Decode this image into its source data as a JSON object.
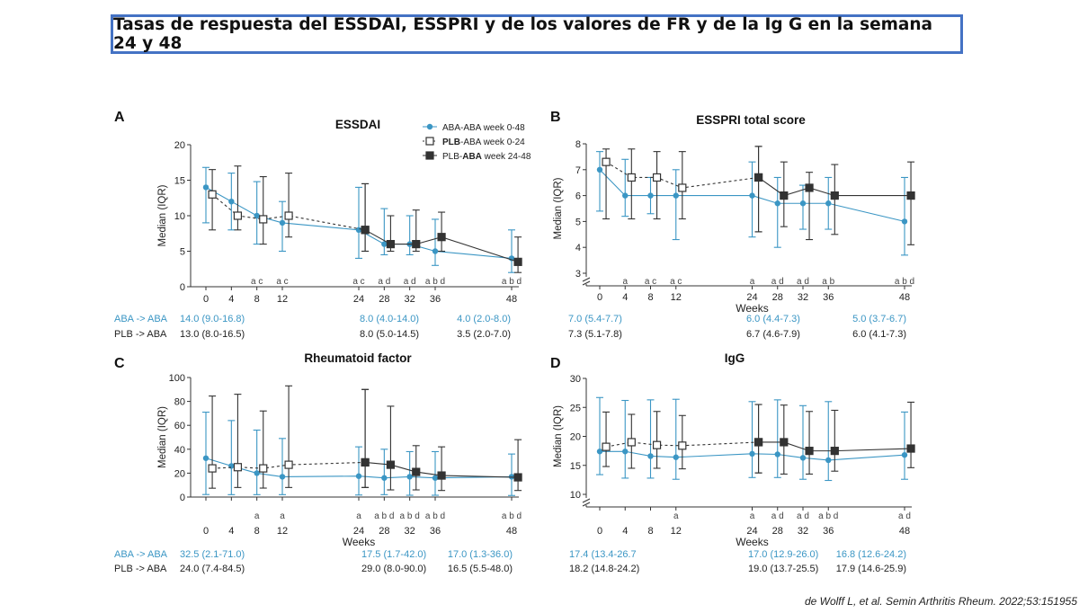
{
  "page_title": "Tasas de respuesta del ESSDAI, ESSPRI y de los valores de FR y de la Ig G en la semana 24 y 48",
  "citation": "de Wolff L, et al. Semin Arthritis Rheum. 2022;53:151955",
  "colors": {
    "aba": "#3b96c4",
    "plb": "#333333",
    "frame": "#4472c4"
  },
  "legend": [
    {
      "label": "ABA-ABA week 0-48",
      "marker": "filled-circle",
      "color": "#3b96c4"
    },
    {
      "label_bold": "PLB",
      "label_rest": "-ABA week 0-24",
      "marker": "open-square",
      "color": "#333333"
    },
    {
      "label_pre": "PLB-",
      "label_bold": "ABA",
      "label_rest": " week 24-48",
      "marker": "filled-square",
      "color": "#333333"
    }
  ],
  "chart_data": [
    {
      "panel": "A",
      "title": "ESSDAI",
      "type": "line",
      "ylabel": "Median (IQR)",
      "xlabel": "",
      "ylim": [
        0,
        20
      ],
      "yticks": [
        0,
        5,
        10,
        15,
        20
      ],
      "xticks": [
        0,
        4,
        8,
        12,
        24,
        28,
        32,
        36,
        48
      ],
      "letters": [
        {
          "x": 8,
          "text": "a c"
        },
        {
          "x": 12,
          "text": "a c"
        },
        {
          "x": 24,
          "text": "a c"
        },
        {
          "x": 28,
          "text": "a d"
        },
        {
          "x": 32,
          "text": "a d"
        },
        {
          "x": 36,
          "text": "a b d"
        },
        {
          "x": 48,
          "text": "a b d"
        }
      ],
      "series": [
        {
          "name": "ABA-ABA week 0-48",
          "x": [
            0,
            4,
            8,
            12,
            24,
            28,
            32,
            36,
            48
          ],
          "y": [
            14.0,
            12.0,
            10.0,
            9.0,
            8.0,
            6.0,
            6.0,
            5.0,
            4.0
          ],
          "lo": [
            9.0,
            8.0,
            6.0,
            5.0,
            4.0,
            4.5,
            4.5,
            3.0,
            2.0
          ],
          "hi": [
            16.8,
            16.0,
            14.8,
            12.0,
            14.0,
            11.0,
            10.0,
            9.5,
            8.0
          ]
        },
        {
          "name": "PLB-ABA week 0-24",
          "x": [
            1,
            5,
            9,
            13,
            25
          ],
          "y": [
            13.0,
            10.0,
            9.5,
            10.0,
            8.0
          ],
          "lo": [
            8.0,
            8.0,
            6.0,
            7.0,
            5.0
          ],
          "hi": [
            16.5,
            17.0,
            15.5,
            16.0,
            14.5
          ]
        },
        {
          "name": "PLB-ABA week 24-48",
          "x": [
            25,
            29,
            33,
            37,
            49
          ],
          "y": [
            8.0,
            6.0,
            6.0,
            7.0,
            3.5
          ],
          "lo": [
            5.0,
            5.0,
            5.0,
            5.0,
            2.0
          ],
          "hi": [
            14.5,
            10.0,
            10.8,
            10.5,
            7.0
          ]
        }
      ],
      "summary": {
        "aba_label": "ABA -> ABA",
        "plb_label": "PLB -> ABA",
        "aba": [
          {
            "x": 0,
            "text": "14.0 (9.0-16.8)"
          },
          {
            "x": 24,
            "text": "8.0 (4.0-14.0)"
          },
          {
            "x": 48,
            "text": "4.0 (2.0-8.0)"
          }
        ],
        "plb": [
          {
            "x": 0,
            "text": "13.0 (8.0-16.5)"
          },
          {
            "x": 24,
            "text": "8.0 (5.0-14.5)"
          },
          {
            "x": 48,
            "text": "3.5 (2.0-7.0)"
          }
        ]
      }
    },
    {
      "panel": "B",
      "title": "ESSPRI total score",
      "type": "line",
      "ylabel": "Median (IQR)",
      "xlabel": "Weeks",
      "ylim": [
        3,
        8
      ],
      "yticks": [
        3,
        4,
        5,
        6,
        7,
        8
      ],
      "xticks": [
        0,
        4,
        8,
        12,
        24,
        28,
        32,
        36,
        48
      ],
      "letters": [
        {
          "x": 4,
          "text": "a"
        },
        {
          "x": 8,
          "text": "a c"
        },
        {
          "x": 12,
          "text": "a c"
        },
        {
          "x": 24,
          "text": "a"
        },
        {
          "x": 28,
          "text": "a d"
        },
        {
          "x": 32,
          "text": "a d"
        },
        {
          "x": 36,
          "text": "a b"
        },
        {
          "x": 48,
          "text": "a b d"
        }
      ],
      "series": [
        {
          "name": "ABA-ABA week 0-48",
          "x": [
            0,
            4,
            8,
            12,
            24,
            28,
            32,
            36,
            48
          ],
          "y": [
            7.0,
            6.0,
            6.0,
            6.0,
            6.0,
            5.7,
            5.7,
            5.7,
            5.0
          ],
          "lo": [
            5.4,
            5.2,
            5.3,
            4.3,
            4.4,
            4.0,
            4.7,
            4.7,
            3.7
          ],
          "hi": [
            7.7,
            7.4,
            6.7,
            7.0,
            7.3,
            6.7,
            6.4,
            6.7,
            6.7
          ]
        },
        {
          "name": "PLB-ABA week 0-24",
          "x": [
            1,
            5,
            9,
            13,
            25
          ],
          "y": [
            7.3,
            6.7,
            6.7,
            6.3,
            6.7
          ],
          "lo": [
            5.1,
            5.1,
            5.1,
            5.1,
            4.6
          ],
          "hi": [
            7.8,
            7.8,
            7.7,
            7.7,
            7.9
          ]
        },
        {
          "name": "PLB-ABA week 24-48",
          "x": [
            25,
            29,
            33,
            37,
            49
          ],
          "y": [
            6.7,
            6.0,
            6.3,
            6.0,
            6.0
          ],
          "lo": [
            4.6,
            4.8,
            4.3,
            4.5,
            4.1
          ],
          "hi": [
            7.9,
            7.3,
            6.9,
            7.2,
            7.3
          ]
        }
      ],
      "summary": {
        "aba": [
          {
            "x": 0,
            "text": "7.0 (5.4-7.7)"
          },
          {
            "x": 24,
            "text": "6.0 (4.4-7.3)"
          },
          {
            "x": 48,
            "text": "5.0 (3.7-6.7)"
          }
        ],
        "plb": [
          {
            "x": 0,
            "text": "7.3 (5.1-7.8)"
          },
          {
            "x": 24,
            "text": "6.7 (4.6-7.9)"
          },
          {
            "x": 48,
            "text": "6.0 (4.1-7.3)"
          }
        ]
      }
    },
    {
      "panel": "C",
      "title": "Rheumatoid factor",
      "type": "line",
      "ylabel": "Median (IQR)",
      "xlabel": "Weeks",
      "ylim": [
        0,
        100
      ],
      "yticks": [
        0,
        20,
        40,
        60,
        80,
        100
      ],
      "xticks": [
        0,
        4,
        8,
        12,
        24,
        28,
        32,
        36,
        48
      ],
      "letters": [
        {
          "x": 8,
          "text": "a"
        },
        {
          "x": 12,
          "text": "a"
        },
        {
          "x": 24,
          "text": "a"
        },
        {
          "x": 28,
          "text": "a b d"
        },
        {
          "x": 32,
          "text": "a b d"
        },
        {
          "x": 36,
          "text": "a b d"
        },
        {
          "x": 48,
          "text": "a b d"
        }
      ],
      "series": [
        {
          "name": "ABA-ABA week 0-48",
          "x": [
            0,
            4,
            8,
            12,
            24,
            28,
            32,
            36,
            48
          ],
          "y": [
            32.5,
            26.0,
            20.0,
            17.0,
            17.5,
            16.0,
            17.0,
            16.0,
            17.0
          ],
          "lo": [
            2.1,
            2.0,
            2.0,
            2.0,
            1.7,
            2.0,
            1.5,
            1.5,
            1.3
          ],
          "hi": [
            71.0,
            64.0,
            56.0,
            49.0,
            42.0,
            40.0,
            38.0,
            38.0,
            36.0
          ]
        },
        {
          "name": "PLB-ABA week 0-24",
          "x": [
            1,
            5,
            9,
            13,
            25
          ],
          "y": [
            24.0,
            25.0,
            24.0,
            27.0,
            29.0
          ],
          "lo": [
            7.4,
            8.0,
            7.5,
            8.0,
            8.0
          ],
          "hi": [
            84.5,
            86.0,
            72.0,
            93.0,
            90.0
          ]
        },
        {
          "name": "PLB-ABA week 24-48",
          "x": [
            25,
            29,
            33,
            37,
            49
          ],
          "y": [
            29.0,
            27.0,
            21.0,
            18.0,
            16.5
          ],
          "lo": [
            8.0,
            6.0,
            6.0,
            5.5,
            5.5
          ],
          "hi": [
            90.0,
            76.0,
            43.0,
            42.0,
            48.0
          ]
        }
      ],
      "summary": {
        "aba_label": "ABA -> ABA",
        "plb_label": "PLB -> ABA",
        "aba": [
          {
            "x": 0,
            "text": "32.5 (2.1-71.0)"
          },
          {
            "x": 24,
            "text": "17.5 (1.7-42.0)"
          },
          {
            "x": 48,
            "text": "17.0 (1.3-36.0)"
          }
        ],
        "plb": [
          {
            "x": 0,
            "text": "24.0 (7.4-84.5)"
          },
          {
            "x": 24,
            "text": "29.0 (8.0-90.0)"
          },
          {
            "x": 48,
            "text": "16.5 (5.5-48.0)"
          }
        ]
      }
    },
    {
      "panel": "D",
      "title": "IgG",
      "type": "line",
      "ylabel": "Median (IQR)",
      "xlabel": "Weeks",
      "ylim": [
        10,
        30
      ],
      "yticks": [
        10,
        15,
        20,
        25,
        30
      ],
      "xticks": [
        0,
        4,
        8,
        12,
        24,
        28,
        32,
        36,
        48
      ],
      "letters": [
        {
          "x": 12,
          "text": "a"
        },
        {
          "x": 24,
          "text": "a"
        },
        {
          "x": 28,
          "text": "a d"
        },
        {
          "x": 32,
          "text": "a d"
        },
        {
          "x": 36,
          "text": "a b d"
        },
        {
          "x": 48,
          "text": "a d"
        }
      ],
      "series": [
        {
          "name": "ABA-ABA week 0-48",
          "x": [
            0,
            4,
            8,
            12,
            24,
            28,
            32,
            36,
            48
          ],
          "y": [
            17.4,
            17.4,
            16.6,
            16.4,
            17.0,
            16.9,
            16.3,
            15.9,
            16.8
          ],
          "lo": [
            13.4,
            12.8,
            12.8,
            12.6,
            12.9,
            12.9,
            12.6,
            12.4,
            12.6
          ],
          "hi": [
            26.7,
            26.2,
            26.3,
            26.4,
            26.0,
            26.3,
            25.3,
            26.0,
            24.2
          ]
        },
        {
          "name": "PLB-ABA week 0-24",
          "x": [
            1,
            5,
            9,
            13,
            25
          ],
          "y": [
            18.2,
            19.0,
            18.5,
            18.4,
            19.0
          ],
          "lo": [
            14.8,
            14.5,
            14.5,
            14.4,
            13.7
          ],
          "hi": [
            24.2,
            23.8,
            24.3,
            23.6,
            25.5
          ]
        },
        {
          "name": "PLB-ABA week 24-48",
          "x": [
            25,
            29,
            33,
            37,
            49
          ],
          "y": [
            19.0,
            19.0,
            17.5,
            17.5,
            17.9
          ],
          "lo": [
            13.7,
            13.5,
            13.5,
            14.0,
            14.6
          ],
          "hi": [
            25.5,
            25.4,
            24.3,
            24.5,
            25.9
          ]
        }
      ],
      "summary": {
        "aba": [
          {
            "x": 0,
            "text": "17.4 (13.4-26.7"
          },
          {
            "x": 24,
            "text": "17.0 (12.9-26.0)"
          },
          {
            "x": 48,
            "text": "16.8 (12.6-24.2)"
          }
        ],
        "plb": [
          {
            "x": 0,
            "text": "18.2 (14.8-24.2)"
          },
          {
            "x": 24,
            "text": "19.0 (13.7-25.5)"
          },
          {
            "x": 48,
            "text": "17.9 (14.6-25.9)"
          }
        ]
      }
    }
  ]
}
